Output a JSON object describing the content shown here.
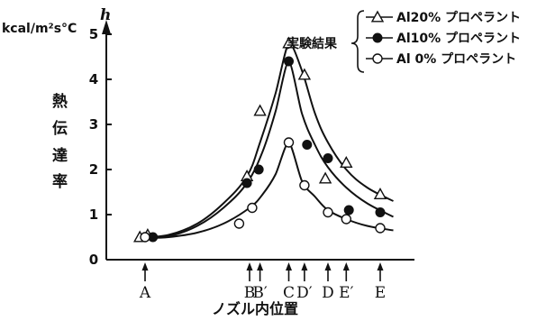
{
  "chart_data": {
    "type": "line",
    "ylabel": "熱伝達率",
    "ylabel_chars": [
      "熱",
      "伝",
      "達",
      "率"
    ],
    "y_symbol": "h",
    "y_unit": "kcal/m²s°C",
    "xlabel": "ノズル内位置",
    "ylim": [
      0,
      5
    ],
    "yticks": [
      0,
      1,
      2,
      3,
      4,
      5
    ],
    "x_positions": [
      {
        "label": "A",
        "x": 0
      },
      {
        "label": "B",
        "x": 4
      },
      {
        "label": "B′",
        "x": 4.4
      },
      {
        "label": "C",
        "x": 5.5
      },
      {
        "label": "D′",
        "x": 6.1
      },
      {
        "label": "D",
        "x": 7
      },
      {
        "label": "E′",
        "x": 7.7
      },
      {
        "label": "E",
        "x": 9
      }
    ],
    "xlim": [
      -0.3,
      9.7
    ],
    "legend_group_label": "実験結果",
    "series": [
      {
        "name": "Al20% プロペラント",
        "marker": "triangle",
        "points": [
          [
            -0.2,
            0.5
          ],
          [
            0.1,
            0.55
          ],
          [
            3.9,
            1.85
          ],
          [
            4.4,
            3.3
          ],
          [
            5.5,
            4.8
          ],
          [
            6.1,
            4.1
          ],
          [
            6.9,
            1.8
          ],
          [
            7.7,
            2.15
          ],
          [
            9.0,
            1.45
          ]
        ],
        "curve": [
          [
            -0.1,
            0.5
          ],
          [
            0.9,
            0.55
          ],
          [
            2.0,
            0.8
          ],
          [
            3.0,
            1.25
          ],
          [
            3.9,
            1.85
          ],
          [
            4.4,
            2.6
          ],
          [
            5.0,
            3.7
          ],
          [
            5.5,
            4.8
          ],
          [
            6.0,
            4.2
          ],
          [
            6.5,
            3.25
          ],
          [
            7.0,
            2.6
          ],
          [
            7.7,
            2.0
          ],
          [
            8.5,
            1.6
          ],
          [
            9.5,
            1.3
          ]
        ]
      },
      {
        "name": "Al10% プロペラント",
        "marker": "filled-circle",
        "points": [
          [
            0.3,
            0.5
          ],
          [
            3.9,
            1.7
          ],
          [
            4.35,
            2.0
          ],
          [
            5.5,
            4.4
          ],
          [
            6.2,
            2.55
          ],
          [
            7.0,
            2.25
          ],
          [
            7.8,
            1.1
          ],
          [
            9.0,
            1.05
          ]
        ],
        "curve": [
          [
            0.0,
            0.5
          ],
          [
            0.9,
            0.52
          ],
          [
            2.0,
            0.75
          ],
          [
            3.0,
            1.15
          ],
          [
            3.9,
            1.7
          ],
          [
            4.5,
            2.4
          ],
          [
            5.0,
            3.3
          ],
          [
            5.5,
            4.4
          ],
          [
            6.0,
            3.25
          ],
          [
            6.5,
            2.55
          ],
          [
            7.0,
            2.05
          ],
          [
            7.7,
            1.6
          ],
          [
            8.5,
            1.25
          ],
          [
            9.5,
            0.95
          ]
        ]
      },
      {
        "name": "Al 0% プロペラント",
        "marker": "open-circle",
        "points": [
          [
            0.0,
            0.5
          ],
          [
            3.6,
            0.8
          ],
          [
            4.1,
            1.15
          ],
          [
            5.5,
            2.6
          ],
          [
            6.1,
            1.65
          ],
          [
            7.0,
            1.05
          ],
          [
            7.7,
            0.9
          ],
          [
            9.0,
            0.7
          ]
        ],
        "curve": [
          [
            0.0,
            0.48
          ],
          [
            0.9,
            0.5
          ],
          [
            2.0,
            0.6
          ],
          [
            3.0,
            0.8
          ],
          [
            4.0,
            1.15
          ],
          [
            4.5,
            1.45
          ],
          [
            5.0,
            1.9
          ],
          [
            5.5,
            2.6
          ],
          [
            6.0,
            1.75
          ],
          [
            6.5,
            1.4
          ],
          [
            7.0,
            1.1
          ],
          [
            7.7,
            0.9
          ],
          [
            8.5,
            0.75
          ],
          [
            9.5,
            0.65
          ]
        ]
      }
    ]
  }
}
